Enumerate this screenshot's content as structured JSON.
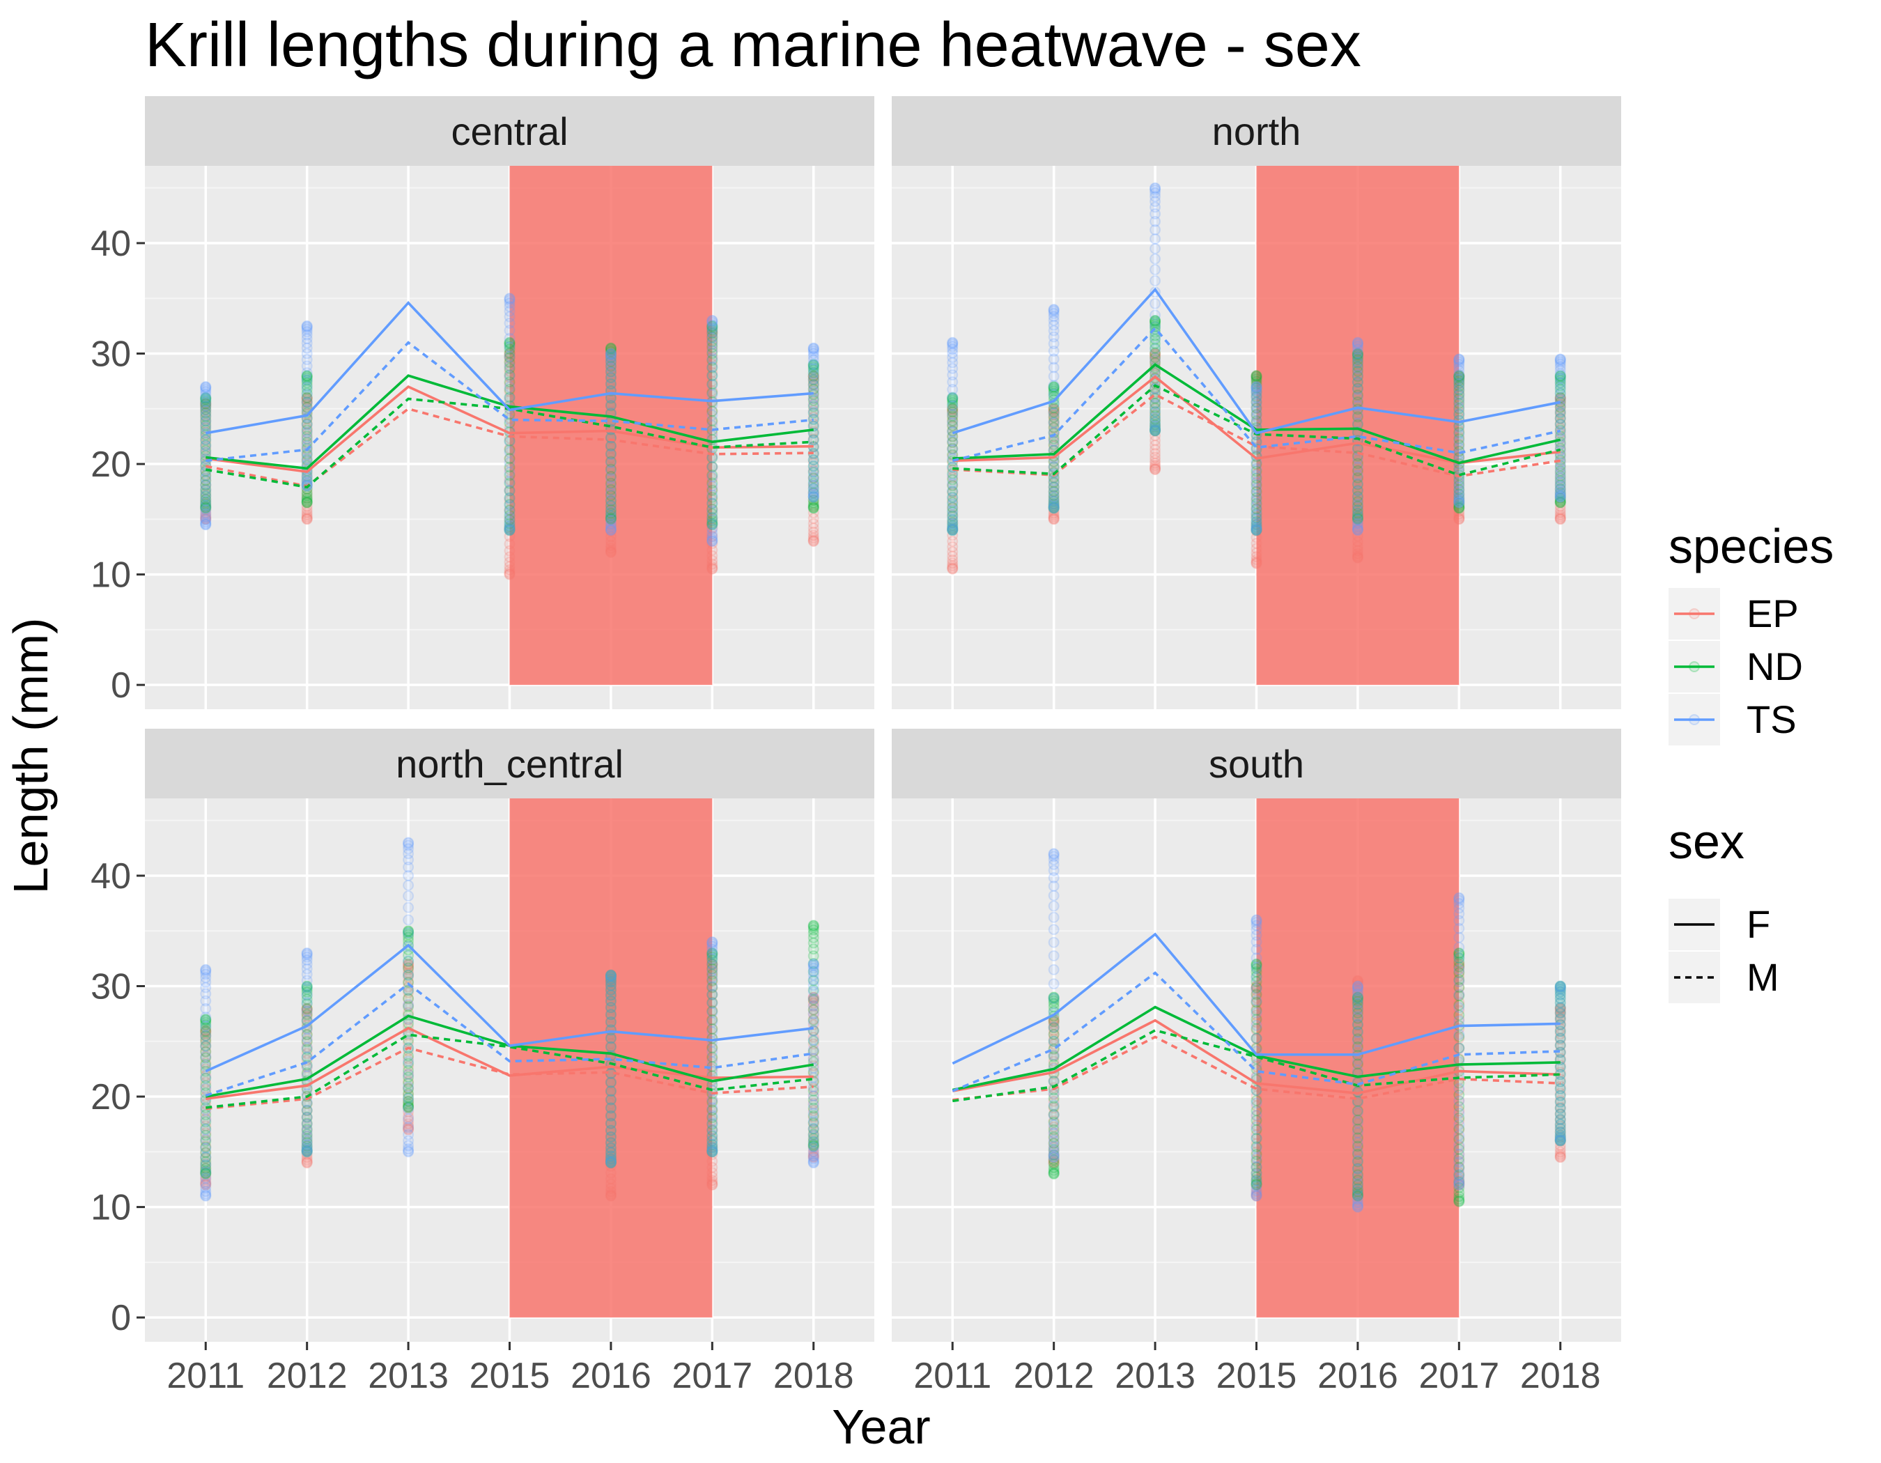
{
  "chart_data": {
    "type": "line",
    "title": "Krill lengths during a marine heatwave - sex",
    "xlabel": "Year",
    "ylabel": "Length (mm)",
    "x": [
      "2011",
      "2012",
      "2013",
      "2015",
      "2016",
      "2017",
      "2018"
    ],
    "ylim": [
      0,
      47
    ],
    "yticks": [
      0,
      10,
      20,
      30,
      40
    ],
    "grid": true,
    "highlight": {
      "from": "2015",
      "to": "2017",
      "color": "#F8766D"
    },
    "panels_layout": "2x2",
    "legend_position": "right",
    "legend": {
      "species": {
        "title": "species",
        "items": [
          {
            "name": "EP",
            "color": "#F8766D"
          },
          {
            "name": "ND",
            "color": "#00BA38"
          },
          {
            "name": "TS",
            "color": "#619CFF"
          }
        ]
      },
      "sex": {
        "title": "sex",
        "items": [
          {
            "name": "F",
            "linetype": "solid"
          },
          {
            "name": "M",
            "linetype": "dashed"
          }
        ]
      }
    },
    "panels": [
      {
        "name": "central",
        "series": [
          {
            "species": "EP",
            "sex": "F",
            "values": [
              20.5,
              19.3,
              27.0,
              22.8,
              23.0,
              21.5,
              21.6
            ]
          },
          {
            "species": "EP",
            "sex": "M",
            "values": [
              19.8,
              18.0,
              25.0,
              22.5,
              22.2,
              20.9,
              21.0
            ]
          },
          {
            "species": "ND",
            "sex": "F",
            "values": [
              20.6,
              19.6,
              28.0,
              25.2,
              24.3,
              22.0,
              23.1
            ]
          },
          {
            "species": "ND",
            "sex": "M",
            "values": [
              19.5,
              17.9,
              25.9,
              25.0,
              23.4,
              21.5,
              22.0
            ]
          },
          {
            "species": "TS",
            "sex": "F",
            "values": [
              22.8,
              24.4,
              34.6,
              24.9,
              26.4,
              25.7,
              26.4
            ]
          },
          {
            "species": "TS",
            "sex": "M",
            "values": [
              20.3,
              21.3,
              31.0,
              24.0,
              23.9,
              23.1,
              24.0
            ]
          }
        ],
        "scatter_range": [
          {
            "species": "EP",
            "ranges": [
              [
                15.0,
                25.5
              ],
              [
                15.0,
                26.0
              ],
              null,
              [
                10.0,
                30.0
              ],
              [
                12.0,
                30.0
              ],
              [
                10.5,
                32.0
              ],
              [
                13.0,
                28.0
              ]
            ]
          },
          {
            "species": "ND",
            "ranges": [
              [
                16.0,
                26.0
              ],
              [
                16.5,
                28.0
              ],
              null,
              [
                14.0,
                31.0
              ],
              [
                15.0,
                30.5
              ],
              [
                14.5,
                32.5
              ],
              [
                16.0,
                29.0
              ]
            ]
          },
          {
            "species": "TS",
            "ranges": [
              [
                14.5,
                27.0
              ],
              [
                18.0,
                32.5
              ],
              null,
              [
                14.0,
                35.0
              ],
              [
                14.0,
                30.0
              ],
              [
                13.0,
                33.0
              ],
              [
                17.0,
                30.5
              ]
            ]
          }
        ]
      },
      {
        "name": "north",
        "series": [
          {
            "species": "EP",
            "sex": "F",
            "values": [
              20.3,
              20.6,
              27.9,
              20.5,
              21.9,
              20.1,
              21.1
            ]
          },
          {
            "species": "EP",
            "sex": "M",
            "values": [
              19.5,
              19.0,
              26.3,
              21.6,
              21.0,
              18.9,
              20.3
            ]
          },
          {
            "species": "ND",
            "sex": "F",
            "values": [
              20.5,
              20.9,
              29.0,
              23.1,
              23.2,
              20.1,
              22.2
            ]
          },
          {
            "species": "ND",
            "sex": "M",
            "values": [
              19.6,
              19.1,
              27.1,
              22.7,
              22.3,
              19.0,
              21.3
            ]
          },
          {
            "species": "TS",
            "sex": "F",
            "values": [
              22.8,
              25.7,
              35.8,
              22.8,
              25.1,
              23.8,
              25.6
            ]
          },
          {
            "species": "TS",
            "sex": "M",
            "values": [
              20.3,
              22.6,
              32.3,
              21.5,
              22.5,
              21.0,
              23.0
            ]
          }
        ],
        "scatter_range": [
          {
            "species": "EP",
            "ranges": [
              [
                10.5,
                25.0
              ],
              [
                15.0,
                25.0
              ],
              [
                19.5,
                30.0
              ],
              [
                11.0,
                28.0
              ],
              [
                11.5,
                30.0
              ],
              [
                15.0,
                28.0
              ],
              [
                15.0,
                26.0
              ]
            ]
          },
          {
            "species": "ND",
            "ranges": [
              [
                14.0,
                26.0
              ],
              [
                16.0,
                27.0
              ],
              [
                23.0,
                33.0
              ],
              [
                14.0,
                28.0
              ],
              [
                15.0,
                30.0
              ],
              [
                16.0,
                28.0
              ],
              [
                16.5,
                28.0
              ]
            ]
          },
          {
            "species": "TS",
            "ranges": [
              [
                14.0,
                31.0
              ],
              [
                16.0,
                34.0
              ],
              [
                23.0,
                45.0
              ],
              [
                14.0,
                27.0
              ],
              [
                14.0,
                31.0
              ],
              [
                16.5,
                29.5
              ],
              [
                17.0,
                29.5
              ]
            ]
          }
        ]
      },
      {
        "name": "north_central",
        "series": [
          {
            "species": "EP",
            "sex": "F",
            "values": [
              19.8,
              21.0,
              26.2,
              21.9,
              22.7,
              21.7,
              21.8
            ]
          },
          {
            "species": "EP",
            "sex": "M",
            "values": [
              18.9,
              19.8,
              24.4,
              22.0,
              22.2,
              20.3,
              20.9
            ]
          },
          {
            "species": "ND",
            "sex": "F",
            "values": [
              20.0,
              21.6,
              27.3,
              24.6,
              23.9,
              21.4,
              22.9
            ]
          },
          {
            "species": "ND",
            "sex": "M",
            "values": [
              19.0,
              20.0,
              25.6,
              24.5,
              23.0,
              20.6,
              21.6
            ]
          },
          {
            "species": "TS",
            "sex": "F",
            "values": [
              22.3,
              26.4,
              33.7,
              24.6,
              25.9,
              25.1,
              26.2
            ]
          },
          {
            "species": "TS",
            "sex": "M",
            "values": [
              20.1,
              23.1,
              30.2,
              23.2,
              23.4,
              22.6,
              23.9
            ]
          }
        ],
        "scatter_range": [
          {
            "species": "EP",
            "ranges": [
              [
                12.0,
                26.0
              ],
              [
                14.0,
                28.0
              ],
              [
                17.0,
                32.0
              ],
              null,
              [
                11.0,
                30.5
              ],
              [
                12.0,
                32.0
              ],
              [
                14.5,
                29.0
              ]
            ]
          },
          {
            "species": "ND",
            "ranges": [
              [
                13.0,
                27.0
              ],
              [
                15.0,
                30.0
              ],
              [
                19.0,
                35.0
              ],
              null,
              [
                14.0,
                31.0
              ],
              [
                15.0,
                33.0
              ],
              [
                15.5,
                35.5
              ]
            ]
          },
          {
            "species": "TS",
            "ranges": [
              [
                11.0,
                31.5
              ],
              [
                15.0,
                33.0
              ],
              [
                15.0,
                43.0
              ],
              null,
              [
                14.0,
                31.0
              ],
              [
                15.0,
                34.0
              ],
              [
                14.0,
                32.0
              ]
            ]
          }
        ]
      },
      {
        "name": "south",
        "series": [
          {
            "species": "EP",
            "sex": "F",
            "values": [
              20.5,
              22.2,
              26.9,
              21.2,
              20.3,
              22.3,
              22.0
            ]
          },
          {
            "species": "EP",
            "sex": "M",
            "values": [
              19.7,
              20.7,
              25.4,
              20.7,
              19.8,
              21.6,
              21.2
            ]
          },
          {
            "species": "ND",
            "sex": "F",
            "values": [
              20.6,
              22.5,
              28.1,
              23.7,
              21.8,
              22.9,
              23.1
            ]
          },
          {
            "species": "ND",
            "sex": "M",
            "values": [
              19.6,
              20.9,
              26.0,
              23.6,
              21.0,
              21.7,
              22.0
            ]
          },
          {
            "species": "TS",
            "sex": "F",
            "values": [
              23.0,
              27.4,
              34.7,
              23.8,
              23.8,
              26.4,
              26.6
            ]
          },
          {
            "species": "TS",
            "sex": "M",
            "values": [
              20.5,
              24.3,
              31.2,
              22.3,
              21.1,
              23.8,
              24.1
            ]
          }
        ],
        "scatter_range": [
          {
            "species": "EP",
            "ranges": [
              null,
              [
                14.0,
                27.0
              ],
              null,
              [
                11.0,
                30.0
              ],
              [
                11.0,
                30.5
              ],
              [
                12.0,
                32.0
              ],
              [
                14.5,
                28.0
              ]
            ]
          },
          {
            "species": "ND",
            "ranges": [
              null,
              [
                13.0,
                29.0
              ],
              null,
              [
                12.0,
                32.0
              ],
              [
                11.0,
                29.0
              ],
              [
                10.5,
                33.0
              ],
              [
                16.0,
                30.0
              ]
            ]
          },
          {
            "species": "TS",
            "ranges": [
              null,
              [
                14.5,
                42.0
              ],
              null,
              [
                11.0,
                36.0
              ],
              [
                10.0,
                30.0
              ],
              [
                12.0,
                38.0
              ],
              [
                16.0,
                30.0
              ]
            ]
          }
        ]
      }
    ]
  }
}
